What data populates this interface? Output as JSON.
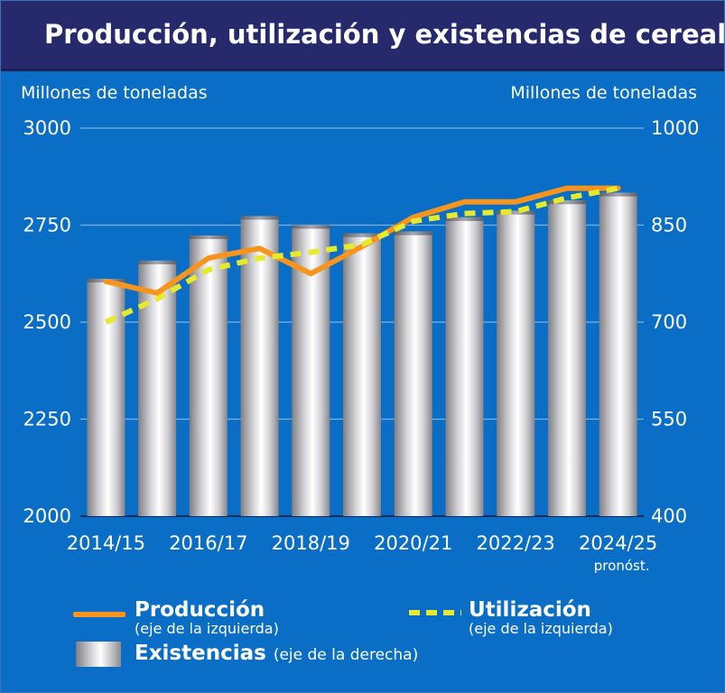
{
  "header": {
    "title": "Producción, utilización y existencias de cereales",
    "left_unit": "Millones de toneladas",
    "right_unit": "Millones de toneladas"
  },
  "chart_data": {
    "type": "bar",
    "title": "Producción, utilización y existencias de cereales",
    "categories": [
      "2014/15",
      "2015/16",
      "2016/17",
      "2017/18",
      "2018/19",
      "2019/20",
      "2020/21",
      "2021/22",
      "2022/23",
      "2023/24",
      "2024/25"
    ],
    "x_tick_labels": [
      "2014/15",
      "2016/17",
      "2018/19",
      "2020/21",
      "2022/23",
      "2024/25"
    ],
    "x_note": "pronóst.",
    "y_left": {
      "label": "Millones de toneladas",
      "ylim": [
        2000,
        3000
      ],
      "ticks": [
        "2000",
        "2250",
        "2500",
        "2750",
        "3000"
      ]
    },
    "y_right": {
      "label": "Millones de toneladas",
      "ylim": [
        400,
        1000
      ],
      "ticks": [
        "400",
        "550",
        "700",
        "850",
        "1000"
      ]
    },
    "grid": true,
    "legend_position": "bottom",
    "series": [
      {
        "name": "Existencias",
        "legend_title": "Existencias",
        "legend_sub": "(eje de la derecha)",
        "kind": "bar",
        "axis": "right",
        "color": "#c8c8cc",
        "values": [
          767,
          795,
          834,
          864,
          850,
          837,
          840,
          862,
          872,
          888,
          900
        ]
      },
      {
        "name": "Producción",
        "legend_title": "Producción",
        "legend_sub": "(eje de la izquierda)",
        "kind": "line",
        "axis": "left",
        "color": "#f7941d",
        "values": [
          2605,
          2575,
          2665,
          2690,
          2625,
          2695,
          2770,
          2810,
          2810,
          2845,
          2845
        ]
      },
      {
        "name": "Utilización",
        "legend_title": "Utilización",
        "legend_sub": "(eje de la izquierda)",
        "kind": "line",
        "axis": "left",
        "dashed": true,
        "color": "#e6ea2c",
        "values": [
          2500,
          2560,
          2635,
          2665,
          2680,
          2700,
          2760,
          2780,
          2785,
          2820,
          2845
        ]
      }
    ]
  }
}
